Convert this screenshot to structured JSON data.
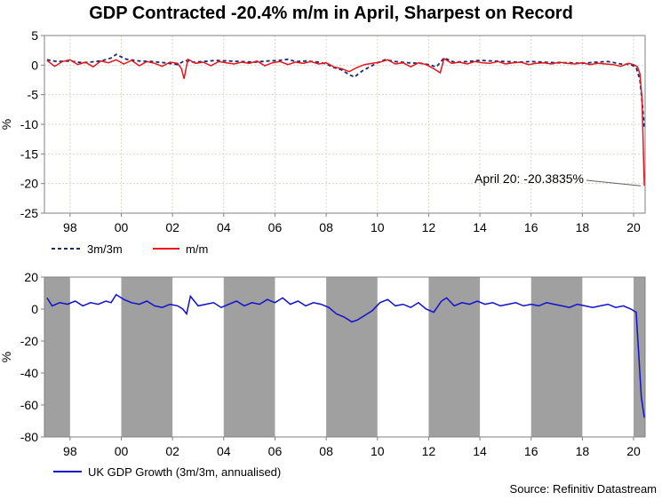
{
  "title": "GDP Contracted -20.4% m/m in April, Sharpest on Record",
  "source": "Source: Refinitiv Datastream",
  "colors": {
    "mm": "#e8141e",
    "threem": "#1c2a6b",
    "growth": "#1010cc",
    "shade": "#a0a0a0",
    "grid": "#d8d8c8"
  },
  "chart_data": [
    {
      "type": "line",
      "ylabel": "%",
      "xlim": [
        1997.0,
        2020.45
      ],
      "ylim": [
        -25,
        5
      ],
      "yticks": [
        5,
        0,
        -5,
        -10,
        -15,
        -20,
        -25
      ],
      "xticks": [
        {
          "year": 1998,
          "label": "98"
        },
        {
          "year": 2000,
          "label": "00"
        },
        {
          "year": 2002,
          "label": "02"
        },
        {
          "year": 2004,
          "label": "04"
        },
        {
          "year": 2006,
          "label": "06"
        },
        {
          "year": 2008,
          "label": "08"
        },
        {
          "year": 2010,
          "label": "10"
        },
        {
          "year": 2012,
          "label": "12"
        },
        {
          "year": 2014,
          "label": "14"
        },
        {
          "year": 2016,
          "label": "16"
        },
        {
          "year": 2018,
          "label": "18"
        },
        {
          "year": 2020,
          "label": "20"
        }
      ],
      "grid": true,
      "series": [
        {
          "name": "3m/3m",
          "style": "dashed",
          "x": [
            1997.1,
            1997.5,
            1998.0,
            1998.5,
            1999.0,
            1999.3,
            1999.6,
            1999.8,
            2000.2,
            2000.7,
            2001.2,
            2001.7,
            2002.2,
            2002.5,
            2002.8,
            2003.2,
            2003.7,
            2004.2,
            2004.7,
            2005.2,
            2005.7,
            2006.2,
            2006.5,
            2006.8,
            2007.2,
            2007.7,
            2008.0,
            2008.3,
            2008.6,
            2008.9,
            2009.1,
            2009.4,
            2009.7,
            2010.0,
            2010.3,
            2010.7,
            2011.2,
            2011.7,
            2012.0,
            2012.3,
            2012.6,
            2013.0,
            2013.5,
            2014.0,
            2014.5,
            2015.0,
            2015.5,
            2016.0,
            2016.5,
            2017.0,
            2017.5,
            2018.0,
            2018.5,
            2019.0,
            2019.5,
            2019.9,
            2020.1,
            2020.25,
            2020.35,
            2020.42
          ],
          "y": [
            0.9,
            0.6,
            0.7,
            0.4,
            0.6,
            0.8,
            1.2,
            1.8,
            1.0,
            0.7,
            0.6,
            0.4,
            0.1,
            0.8,
            0.5,
            0.6,
            0.8,
            0.7,
            0.6,
            0.5,
            0.7,
            0.8,
            1.0,
            0.6,
            0.7,
            0.5,
            0.2,
            -0.4,
            -0.8,
            -1.6,
            -2.0,
            -1.0,
            -0.3,
            0.4,
            0.9,
            0.6,
            0.4,
            0.3,
            0.1,
            -0.3,
            1.2,
            0.5,
            0.6,
            0.8,
            0.7,
            0.6,
            0.5,
            0.6,
            0.5,
            0.4,
            0.4,
            0.3,
            0.5,
            0.6,
            0.2,
            0.1,
            -0.4,
            -2.5,
            -7.0,
            -10.4
          ]
        },
        {
          "name": "m/m",
          "style": "solid",
          "x": [
            1997.1,
            1997.4,
            1997.7,
            1998.0,
            1998.3,
            1998.6,
            1998.9,
            1999.2,
            1999.5,
            1999.8,
            2000.1,
            2000.4,
            2000.7,
            2001.0,
            2001.3,
            2001.6,
            2001.9,
            2002.2,
            2002.35,
            2002.45,
            2002.6,
            2002.9,
            2003.2,
            2003.5,
            2003.8,
            2004.1,
            2004.4,
            2004.7,
            2005.0,
            2005.3,
            2005.6,
            2005.9,
            2006.2,
            2006.5,
            2006.8,
            2007.1,
            2007.4,
            2007.7,
            2008.0,
            2008.3,
            2008.6,
            2008.9,
            2009.2,
            2009.5,
            2009.8,
            2010.1,
            2010.4,
            2010.7,
            2011.0,
            2011.3,
            2011.6,
            2011.9,
            2012.2,
            2012.45,
            2012.6,
            2012.9,
            2013.2,
            2013.5,
            2013.8,
            2014.1,
            2014.4,
            2014.7,
            2015.0,
            2015.3,
            2015.6,
            2015.9,
            2016.2,
            2016.5,
            2016.8,
            2017.1,
            2017.4,
            2017.7,
            2018.0,
            2018.3,
            2018.6,
            2018.9,
            2019.2,
            2019.5,
            2019.8,
            2020.0,
            2020.15,
            2020.25,
            2020.33,
            2020.42
          ],
          "y": [
            0.8,
            -0.2,
            0.6,
            0.9,
            0.1,
            0.5,
            -0.3,
            0.7,
            0.4,
            0.9,
            0.2,
            0.8,
            -0.1,
            0.6,
            0.3,
            -0.2,
            0.5,
            0.3,
            -0.6,
            -2.3,
            1.0,
            0.3,
            0.5,
            -0.1,
            0.6,
            0.4,
            0.2,
            0.5,
            0.3,
            0.7,
            -0.1,
            0.4,
            0.6,
            0.1,
            0.5,
            0.3,
            0.6,
            0.2,
            0.4,
            -0.3,
            -0.6,
            -1.1,
            -0.4,
            0.1,
            0.3,
            0.5,
            0.9,
            0.2,
            0.4,
            -0.3,
            0.4,
            0.1,
            -0.6,
            -1.3,
            1.1,
            0.3,
            0.5,
            0.2,
            0.6,
            0.4,
            0.3,
            0.6,
            0.2,
            0.4,
            0.5,
            0.1,
            0.3,
            0.4,
            0.2,
            0.5,
            0.3,
            0.2,
            0.4,
            0.1,
            0.3,
            0.2,
            0.1,
            -0.2,
            0.3,
            0.1,
            -0.3,
            -1.5,
            -5.8,
            -20.4
          ]
        }
      ],
      "annotation": {
        "text": "April 20: -20.3835%",
        "x": 2020.35,
        "y": -20.38
      }
    },
    {
      "type": "line",
      "ylabel": "%",
      "xlim": [
        1997.0,
        2020.45
      ],
      "ylim": [
        -80,
        20
      ],
      "yticks": [
        20,
        0,
        -20,
        -40,
        -60,
        -80
      ],
      "xticks": [
        {
          "year": 1998,
          "label": "98"
        },
        {
          "year": 2000,
          "label": "00"
        },
        {
          "year": 2002,
          "label": "02"
        },
        {
          "year": 2004,
          "label": "04"
        },
        {
          "year": 2006,
          "label": "06"
        },
        {
          "year": 2008,
          "label": "08"
        },
        {
          "year": 2010,
          "label": "10"
        },
        {
          "year": 2012,
          "label": "12"
        },
        {
          "year": 2014,
          "label": "14"
        },
        {
          "year": 2016,
          "label": "16"
        },
        {
          "year": 2018,
          "label": "18"
        },
        {
          "year": 2020,
          "label": "20"
        }
      ],
      "grid": false,
      "shaded_periods": [
        [
          1997.0,
          1998.0
        ],
        [
          2000.0,
          2002.0
        ],
        [
          2004.0,
          2006.0
        ],
        [
          2008.0,
          2010.0
        ],
        [
          2012.0,
          2014.0
        ],
        [
          2016.0,
          2018.0
        ],
        [
          2020.0,
          2020.45
        ]
      ],
      "series": [
        {
          "name": "UK GDP Growth (3m/3m, annualised)",
          "style": "solid",
          "x": [
            1997.1,
            1997.3,
            1997.6,
            1997.9,
            1998.2,
            1998.5,
            1998.8,
            1999.1,
            1999.4,
            1999.6,
            1999.8,
            2000.1,
            2000.4,
            2000.7,
            2001.0,
            2001.3,
            2001.6,
            2001.9,
            2002.2,
            2002.4,
            2002.55,
            2002.7,
            2003.0,
            2003.3,
            2003.6,
            2003.9,
            2004.2,
            2004.5,
            2004.8,
            2005.1,
            2005.4,
            2005.7,
            2006.0,
            2006.3,
            2006.6,
            2006.9,
            2007.2,
            2007.5,
            2007.8,
            2008.1,
            2008.4,
            2008.7,
            2009.0,
            2009.2,
            2009.5,
            2009.8,
            2010.1,
            2010.4,
            2010.7,
            2011.0,
            2011.3,
            2011.6,
            2011.9,
            2012.2,
            2012.5,
            2012.7,
            2013.0,
            2013.3,
            2013.6,
            2013.9,
            2014.2,
            2014.5,
            2014.8,
            2015.1,
            2015.4,
            2015.7,
            2016.0,
            2016.3,
            2016.6,
            2016.9,
            2017.2,
            2017.5,
            2017.8,
            2018.1,
            2018.4,
            2018.7,
            2019.0,
            2019.3,
            2019.6,
            2019.9,
            2020.1,
            2020.2,
            2020.3,
            2020.42
          ],
          "y": [
            7,
            2,
            4,
            3,
            5,
            2,
            4,
            3,
            5,
            4,
            9,
            6,
            4,
            3,
            5,
            2,
            1,
            3,
            2,
            0,
            -3,
            8,
            2,
            3,
            4,
            1,
            3,
            5,
            2,
            4,
            3,
            6,
            4,
            7,
            3,
            5,
            2,
            4,
            3,
            1,
            -3,
            -5,
            -8,
            -7,
            -4,
            -1,
            4,
            6,
            2,
            3,
            1,
            4,
            0,
            -2,
            5,
            7,
            2,
            4,
            3,
            5,
            3,
            4,
            2,
            3,
            4,
            2,
            3,
            2,
            4,
            3,
            2,
            1,
            3,
            2,
            1,
            2,
            3,
            1,
            2,
            0,
            -2,
            -28,
            -55,
            -68
          ]
        }
      ]
    }
  ]
}
